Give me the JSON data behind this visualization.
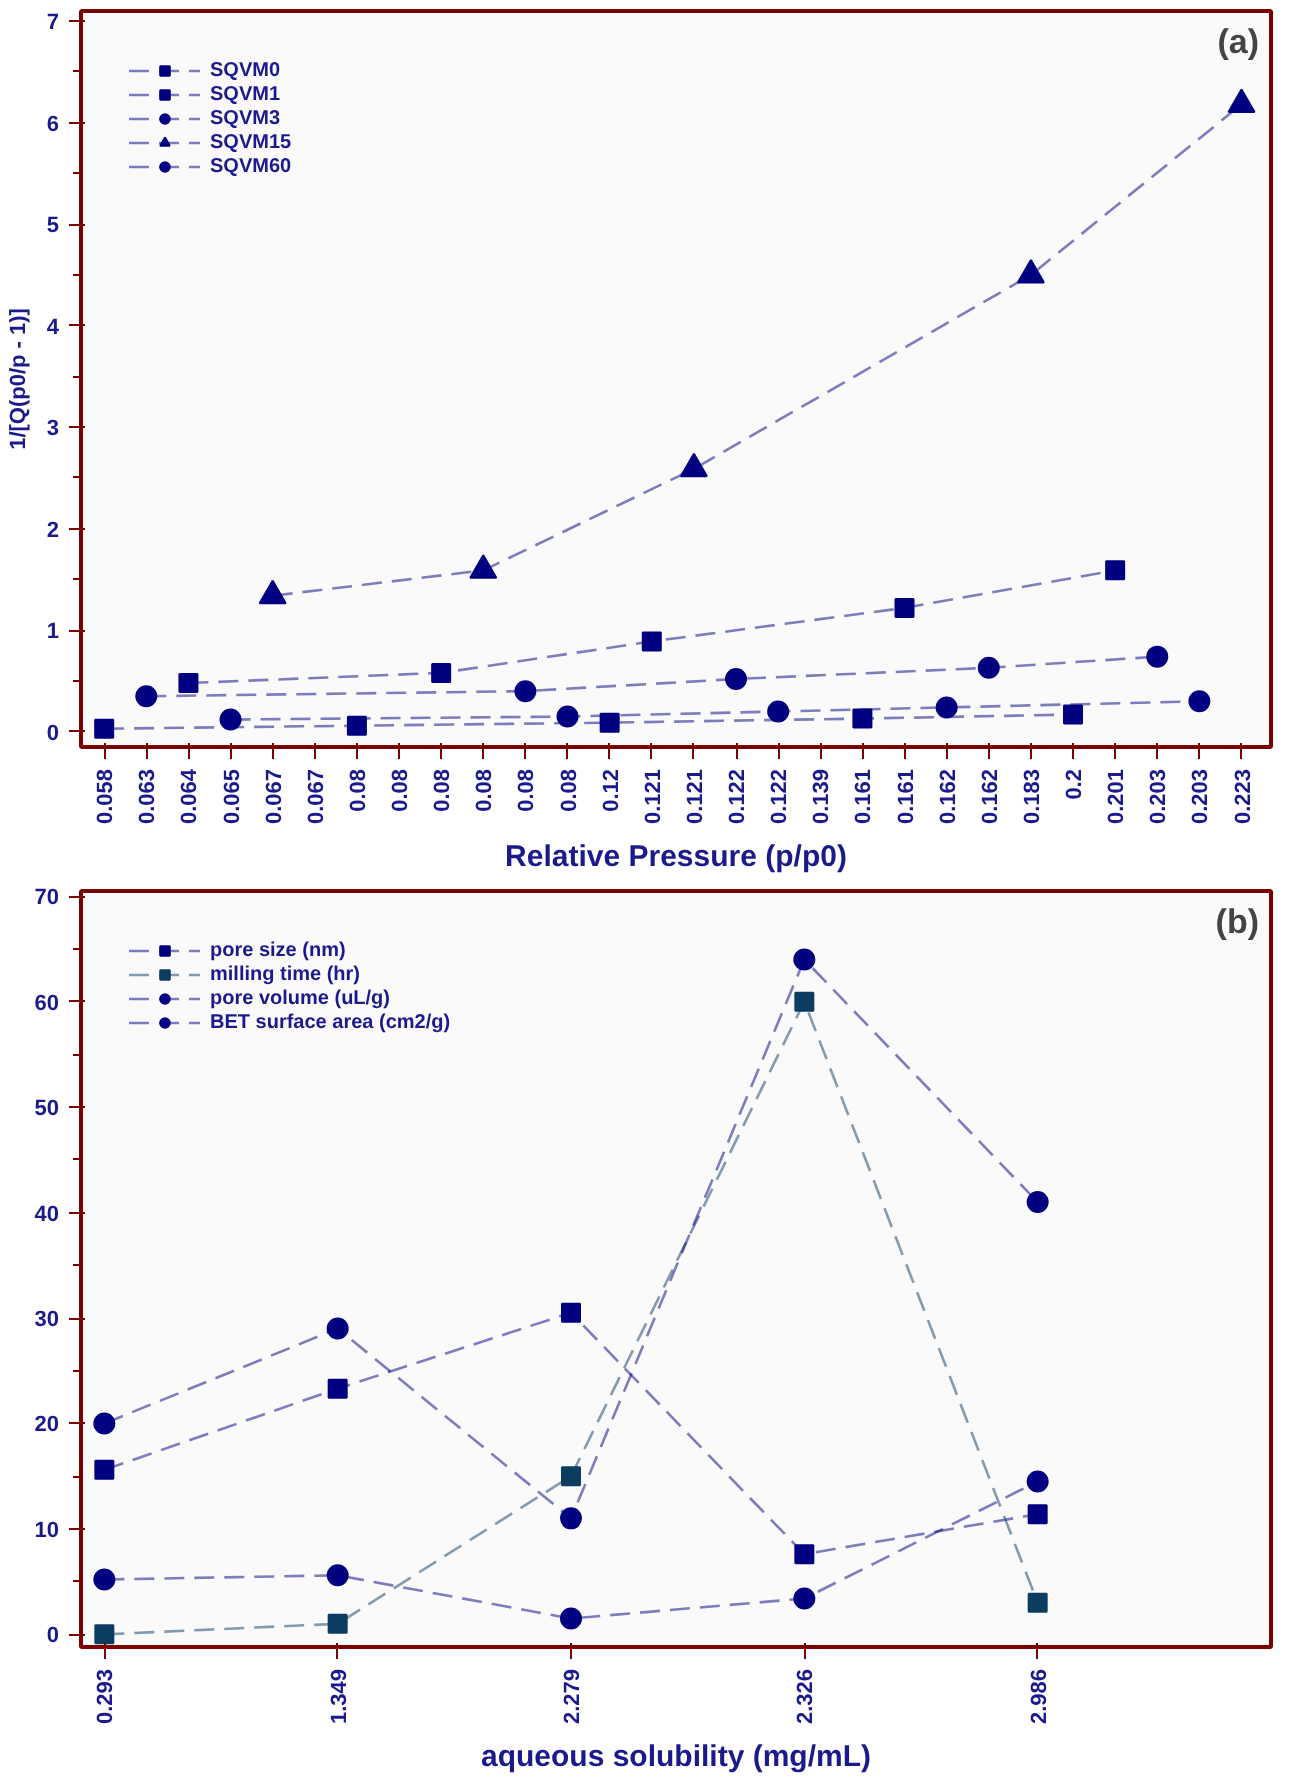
{
  "chart_data": [
    {
      "type": "line",
      "xlabel": "Relative Pressure (p/p0)",
      "ylabel": "1/[Q(p0/p - 1)]",
      "categories": [
        "0.058",
        "0.063",
        "0.064",
        "0.065",
        "0.067",
        "0.067",
        "0.08",
        "0.08",
        "0.08",
        "0.08",
        "0.08",
        "0.08",
        "0.12",
        "0.121",
        "0.121",
        "0.122",
        "0.122",
        "0.139",
        "0.161",
        "0.161",
        "0.162",
        "0.162",
        "0.183",
        "0.2",
        "0.201",
        "0.203",
        "0.203",
        "0.223"
      ],
      "ylim": [
        -0.15,
        7.1
      ],
      "yticks": [
        0,
        1,
        2,
        3,
        4,
        5,
        6,
        7
      ],
      "grid": false,
      "legend": "top left",
      "line_style": "dashed",
      "annotations": [
        "(a)"
      ],
      "series": [
        {
          "name": "SQVM0",
          "color": "#000080",
          "marker": "square",
          "values": [
            0.03,
            null,
            null,
            null,
            null,
            null,
            0.06,
            null,
            null,
            null,
            null,
            null,
            0.09,
            null,
            null,
            null,
            null,
            null,
            0.13,
            null,
            null,
            null,
            null,
            0.17,
            null,
            null,
            null,
            null
          ]
        },
        {
          "name": "SQVM1",
          "color": "#000080",
          "marker": "square",
          "values": [
            null,
            null,
            0.48,
            null,
            null,
            null,
            null,
            null,
            0.58,
            null,
            null,
            null,
            null,
            0.89,
            null,
            null,
            null,
            null,
            null,
            1.22,
            null,
            null,
            null,
            null,
            1.59,
            null,
            null,
            null
          ]
        },
        {
          "name": "SQVM3",
          "color": "#000080",
          "marker": "circle",
          "values": [
            null,
            0.35,
            null,
            null,
            null,
            null,
            null,
            null,
            null,
            null,
            0.4,
            null,
            null,
            null,
            null,
            0.52,
            null,
            null,
            null,
            null,
            null,
            0.63,
            null,
            null,
            null,
            0.74,
            null,
            null
          ]
        },
        {
          "name": "SQVM15",
          "color": "#000080",
          "marker": "triangle",
          "values": [
            null,
            null,
            null,
            null,
            1.34,
            null,
            null,
            null,
            null,
            1.59,
            null,
            null,
            null,
            null,
            2.59,
            null,
            null,
            null,
            null,
            null,
            null,
            null,
            4.5,
            null,
            null,
            null,
            null,
            6.18
          ]
        },
        {
          "name": "SQVM60",
          "color": "#000080",
          "marker": "circle",
          "values": [
            null,
            null,
            null,
            0.12,
            null,
            null,
            null,
            null,
            null,
            null,
            null,
            0.15,
            null,
            null,
            null,
            null,
            0.2,
            null,
            null,
            null,
            0.24,
            null,
            null,
            null,
            null,
            null,
            0.3,
            null
          ]
        }
      ]
    },
    {
      "type": "line",
      "xlabel": "aqueous solubility (mg/mL)",
      "categories": [
        "0.293",
        "1.349",
        "2.279",
        "2.326",
        "2.986"
      ],
      "ylim": [
        -1.2,
        70.5
      ],
      "yticks": [
        0,
        10,
        20,
        30,
        40,
        50,
        60,
        70
      ],
      "grid": false,
      "legend": "top left",
      "line_style": "dashed",
      "annotations": [
        "(b)"
      ],
      "series": [
        {
          "name": "pore size (nm)",
          "color": "#000080",
          "marker": "square",
          "values": [
            15.6,
            23.3,
            30.5,
            7.6,
            11.4
          ]
        },
        {
          "name": "milling time (hr)",
          "color": "#0d3c61",
          "marker": "square",
          "values": [
            0,
            1,
            15,
            60,
            3
          ]
        },
        {
          "name": "pore volume (uL/g)",
          "color": "#000080",
          "marker": "circle",
          "values": [
            20,
            29,
            11,
            64,
            41
          ]
        },
        {
          "name": "BET surface area (cm2/g)",
          "color": "#000080",
          "marker": "circle",
          "values": [
            5.2,
            5.6,
            1.5,
            3.4,
            14.5
          ]
        }
      ]
    }
  ]
}
